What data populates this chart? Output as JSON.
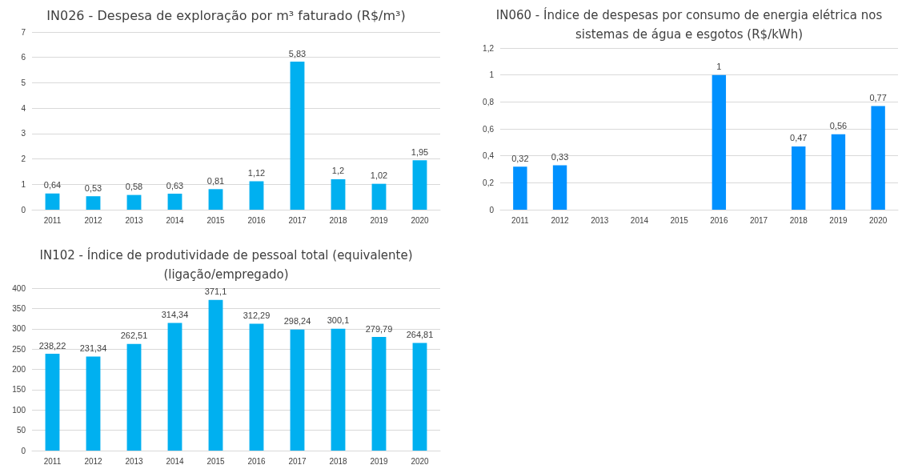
{
  "chart_data": [
    {
      "type": "bar",
      "title": "IN026 - Despesa de exploração por m³ faturado (R$/m³)",
      "categories": [
        "2011",
        "2012",
        "2013",
        "2014",
        "2015",
        "2016",
        "2017",
        "2018",
        "2019",
        "2020"
      ],
      "values": [
        0.64,
        0.53,
        0.58,
        0.63,
        0.81,
        1.12,
        5.83,
        1.2,
        1.02,
        1.95
      ],
      "value_labels": [
        "0,64",
        "0,53",
        "0,58",
        "0,63",
        "0,81",
        "1,12",
        "5,83",
        "1,2",
        "1,02",
        "1,95"
      ],
      "color": "#00b0f0",
      "ylim": [
        0,
        7
      ],
      "yticks": [
        0,
        1,
        2,
        3,
        4,
        5,
        6,
        7
      ],
      "grid": "y"
    },
    {
      "type": "bar",
      "title": "IN060 - Índice de despesas por consumo de energia elétrica nos\nsistemas de água e esgotos (R$/kWh)",
      "categories": [
        "2011",
        "2012",
        "2013",
        "2014",
        "2015",
        "2016",
        "2017",
        "2018",
        "2019",
        "2020"
      ],
      "values": [
        0.32,
        0.33,
        null,
        null,
        null,
        1,
        null,
        0.47,
        0.56,
        0.77
      ],
      "value_labels": [
        "0,32",
        "0,33",
        null,
        null,
        null,
        "1",
        null,
        "0,47",
        "0,56",
        "0,77"
      ],
      "color": "#0091ff",
      "ylim": [
        0,
        1.2
      ],
      "yticks": [
        0,
        {
          "value": 0.2,
          "label": "0,2"
        },
        {
          "value": 0.4,
          "label": "0,4"
        },
        {
          "value": 0.6,
          "label": "0,6"
        },
        {
          "value": 0.8,
          "label": "0,8"
        },
        1,
        {
          "value": 1.2,
          "label": "1,2"
        }
      ],
      "grid": "y"
    },
    {
      "type": "bar",
      "title": "IN102 - Índice de produtividade de pessoal total (equivalente)\n(ligação/empregado)",
      "categories": [
        "2011",
        "2012",
        "2013",
        "2014",
        "2015",
        "2016",
        "2017",
        "2018",
        "2019",
        "2020"
      ],
      "values": [
        238.22,
        231.34,
        262.51,
        314.34,
        371.1,
        312.29,
        298.24,
        300.1,
        279.79,
        264.81
      ],
      "value_labels": [
        "238,22",
        "231,34",
        "262,51",
        "314,34",
        "371,1",
        "312,29",
        "298,24",
        "300,1",
        "279,79",
        "264,81"
      ],
      "color": "#00b0f0",
      "ylim": [
        0,
        400
      ],
      "yticks": [
        0,
        50,
        100,
        150,
        200,
        250,
        300,
        350,
        400
      ],
      "grid": "y"
    }
  ]
}
